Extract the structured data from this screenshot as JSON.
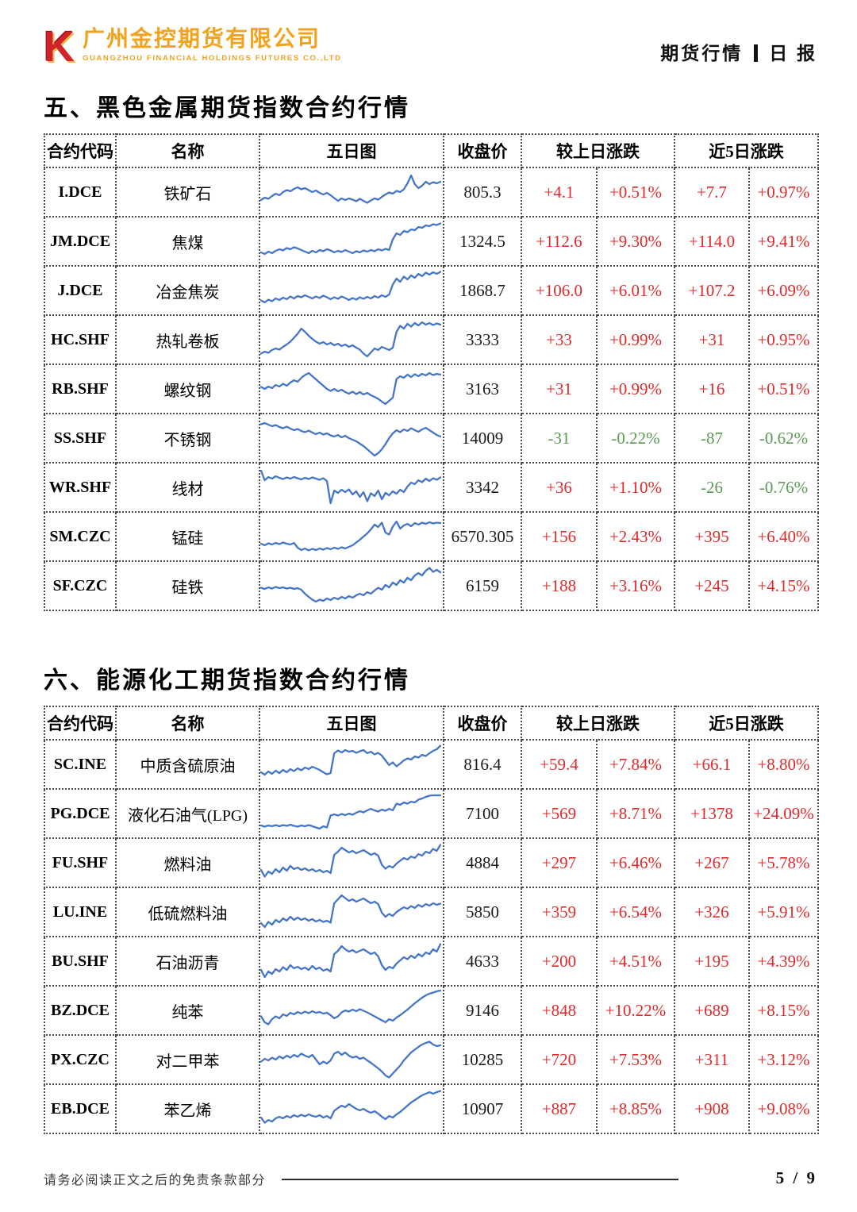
{
  "header": {
    "logo": {
      "mark": "K",
      "company_cn": "广州金控期货有限公司",
      "company_en": "GUANGZHOU FINANCIAL HOLDINGS FUTURES CO.,LTD"
    },
    "report_type": "期货行情",
    "report_period": "日 报"
  },
  "colors": {
    "up": "#e02a2a",
    "down": "#5b9a54",
    "spark": "#4575c8",
    "logo_red": "#d2232b",
    "logo_orange": "#f2a31d"
  },
  "columns": {
    "code": "合约代码",
    "name": "名称",
    "chart": "五日图",
    "close": "收盘价",
    "chg1": "较上日涨跌",
    "chg5": "近5日涨跌"
  },
  "sections": [
    {
      "title": "五、黑色金属期货指数合约行情",
      "rows": [
        {
          "code": "I.DCE",
          "name": "铁矿石",
          "close": "805.3",
          "chg": "+4.1",
          "chg_pct": "+0.51%",
          "chg5": "+7.7",
          "chg5_pct": "+0.97%",
          "spark": [
            30,
            36,
            33,
            40,
            46,
            42,
            50,
            55,
            52,
            58,
            62,
            57,
            60,
            55,
            50,
            54,
            48,
            44,
            48,
            42,
            35,
            28,
            34,
            30,
            34,
            31,
            27,
            33,
            28,
            23,
            29,
            34,
            31,
            38,
            44,
            49,
            46,
            53,
            50,
            57,
            72,
            92,
            70,
            60,
            66,
            76,
            70,
            75,
            72,
            76
          ]
        },
        {
          "code": "JM.DCE",
          "name": "焦煤",
          "close": "1324.5",
          "chg": "+112.6",
          "chg_pct": "+9.30%",
          "chg5": "+114.0",
          "chg5_pct": "+9.41%",
          "spark": [
            22,
            18,
            24,
            20,
            26,
            30,
            27,
            33,
            30,
            35,
            32,
            28,
            24,
            20,
            26,
            22,
            28,
            25,
            30,
            27,
            22,
            26,
            23,
            28,
            24,
            20,
            25,
            22,
            27,
            24,
            28,
            25,
            30,
            27,
            31,
            28,
            55,
            70,
            66,
            76,
            73,
            80,
            78,
            86,
            84,
            90,
            88,
            93,
            91,
            95
          ]
        },
        {
          "code": "J.DCE",
          "name": "冶金焦炭",
          "close": "1868.7",
          "chg": "+106.0",
          "chg_pct": "+6.01%",
          "chg5": "+107.2",
          "chg5_pct": "+6.09%",
          "spark": [
            25,
            20,
            27,
            23,
            30,
            26,
            32,
            28,
            35,
            30,
            36,
            33,
            38,
            34,
            30,
            35,
            31,
            37,
            33,
            28,
            33,
            29,
            35,
            31,
            26,
            31,
            27,
            33,
            29,
            34,
            30,
            36,
            32,
            38,
            34,
            40,
            65,
            80,
            72,
            85,
            78,
            88,
            82,
            92,
            86,
            95,
            90,
            96,
            92,
            97
          ]
        },
        {
          "code": "HC.SHF",
          "name": "热轧卷板",
          "close": "3333",
          "chg": "+33",
          "chg_pct": "+0.99%",
          "chg5": "+31",
          "chg5_pct": "+0.95%",
          "spark": [
            15,
            20,
            17,
            24,
            28,
            25,
            32,
            38,
            45,
            55,
            65,
            78,
            70,
            60,
            52,
            45,
            40,
            44,
            38,
            42,
            36,
            40,
            34,
            38,
            32,
            36,
            30,
            25,
            15,
            8,
            18,
            28,
            24,
            32,
            28,
            24,
            30,
            70,
            85,
            78,
            90,
            83,
            92,
            86,
            94,
            88,
            92,
            87,
            91,
            88
          ]
        },
        {
          "code": "RB.SHF",
          "name": "螺纹钢",
          "close": "3163",
          "chg": "+31",
          "chg_pct": "+0.99%",
          "chg5": "+16",
          "chg5_pct": "+0.51%",
          "spark": [
            55,
            50,
            56,
            52,
            60,
            56,
            63,
            58,
            66,
            72,
            68,
            78,
            85,
            90,
            82,
            74,
            66,
            58,
            50,
            45,
            50,
            44,
            48,
            42,
            38,
            43,
            37,
            42,
            36,
            40,
            34,
            30,
            25,
            18,
            12,
            20,
            28,
            75,
            82,
            78,
            86,
            80,
            87,
            82,
            88,
            84,
            90,
            85,
            88,
            86
          ]
        },
        {
          "code": "SS.SHF",
          "name": "不锈钢",
          "close": "14009",
          "chg": "-31",
          "chg_pct": "-0.22%",
          "chg5": "-87",
          "chg5_pct": "-0.62%",
          "spark": [
            85,
            88,
            84,
            80,
            83,
            78,
            75,
            79,
            74,
            70,
            73,
            68,
            65,
            69,
            64,
            60,
            64,
            59,
            62,
            57,
            54,
            58,
            52,
            56,
            50,
            46,
            42,
            36,
            30,
            22,
            14,
            6,
            12,
            22,
            35,
            50,
            62,
            70,
            65,
            72,
            68,
            75,
            70,
            66,
            72,
            76,
            70,
            64,
            58,
            54
          ]
        },
        {
          "code": "WR.SHF",
          "name": "线材",
          "close": "3342",
          "chg": "+36",
          "chg_pct": "+1.10%",
          "chg5": "-26",
          "chg5_pct": "-0.76%",
          "spark": [
            92,
            68,
            76,
            72,
            78,
            74,
            71,
            75,
            72,
            76,
            73,
            70,
            74,
            71,
            75,
            72,
            69,
            73,
            66,
            10,
            42,
            36,
            44,
            38,
            45,
            32,
            40,
            26,
            38,
            15,
            35,
            28,
            42,
            20,
            36,
            30,
            40,
            34,
            44,
            38,
            52,
            62,
            58,
            68,
            63,
            72,
            66,
            73,
            69,
            75
          ]
        },
        {
          "code": "SM.CZC",
          "name": "锰硅",
          "close": "6570.305",
          "chg": "+156",
          "chg_pct": "+2.43%",
          "chg5": "+395",
          "chg5_pct": "+6.40%",
          "spark": [
            32,
            28,
            33,
            30,
            34,
            31,
            35,
            32,
            30,
            34,
            22,
            16,
            20,
            15,
            19,
            16,
            20,
            17,
            21,
            18,
            22,
            19,
            23,
            20,
            24,
            28,
            35,
            42,
            50,
            58,
            68,
            80,
            74,
            85,
            60,
            55,
            75,
            88,
            70,
            78,
            82,
            76,
            84,
            80,
            85,
            82,
            86,
            83,
            85,
            84
          ]
        },
        {
          "code": "SF.CZC",
          "name": "硅铁",
          "close": "6159",
          "chg": "+188",
          "chg_pct": "+3.16%",
          "chg5": "+245",
          "chg5_pct": "+4.15%",
          "spark": [
            45,
            42,
            46,
            43,
            47,
            44,
            46,
            43,
            45,
            42,
            44,
            40,
            30,
            22,
            15,
            10,
            15,
            12,
            18,
            14,
            20,
            16,
            22,
            18,
            24,
            20,
            26,
            30,
            26,
            34,
            30,
            38,
            45,
            40,
            52,
            46,
            58,
            52,
            64,
            58,
            70,
            64,
            76,
            82,
            76,
            88,
            95,
            85,
            90,
            84
          ]
        }
      ]
    },
    {
      "title": "六、能源化工期货指数合约行情",
      "rows": [
        {
          "code": "SC.INE",
          "name": "中质含硫原油",
          "close": "816.4",
          "chg": "+59.4",
          "chg_pct": "+7.84%",
          "chg5": "+66.1",
          "chg5_pct": "+8.80%",
          "spark": [
            30,
            24,
            32,
            26,
            34,
            28,
            36,
            30,
            38,
            33,
            40,
            35,
            42,
            38,
            44,
            40,
            36,
            30,
            25,
            28,
            78,
            85,
            80,
            86,
            82,
            84,
            79,
            83,
            86,
            78,
            82,
            75,
            79,
            72,
            60,
            48,
            55,
            45,
            52,
            60,
            65,
            62,
            70,
            67,
            74,
            71,
            78,
            84,
            88,
            97
          ]
        },
        {
          "code": "PG.DCE",
          "name": "液化石油气(LPG)",
          "close": "7100",
          "chg": "+569",
          "chg_pct": "+8.71%",
          "chg5": "+1378",
          "chg5_pct": "+24.09%",
          "spark": [
            20,
            17,
            20,
            18,
            21,
            18,
            21,
            19,
            22,
            19,
            17,
            20,
            18,
            21,
            18,
            15,
            12,
            18,
            15,
            45,
            48,
            45,
            49,
            46,
            50,
            47,
            52,
            56,
            53,
            58,
            62,
            58,
            55,
            60,
            57,
            62,
            58,
            75,
            72,
            78,
            75,
            80,
            78,
            85,
            88,
            92,
            95,
            96,
            96,
            96
          ]
        },
        {
          "code": "FU.SHF",
          "name": "燃料油",
          "close": "4884",
          "chg": "+297",
          "chg_pct": "+6.46%",
          "chg5": "+267",
          "chg5_pct": "+5.78%",
          "spark": [
            32,
            15,
            28,
            22,
            34,
            26,
            38,
            30,
            42,
            34,
            38,
            32,
            36,
            30,
            34,
            28,
            32,
            26,
            30,
            24,
            70,
            78,
            88,
            82,
            76,
            80,
            74,
            78,
            82,
            76,
            70,
            74,
            68,
            45,
            35,
            42,
            38,
            48,
            55,
            62,
            58,
            66,
            62,
            72,
            68,
            78,
            74,
            85,
            80,
            95
          ]
        },
        {
          "code": "LU.INE",
          "name": "低硫燃料油",
          "close": "5850",
          "chg": "+359",
          "chg_pct": "+6.54%",
          "chg5": "+326",
          "chg5_pct": "+5.91%",
          "spark": [
            22,
            12,
            25,
            18,
            30,
            24,
            34,
            28,
            38,
            30,
            36,
            30,
            34,
            28,
            32,
            26,
            30,
            25,
            28,
            23,
            72,
            82,
            92,
            85,
            78,
            82,
            76,
            80,
            84,
            78,
            72,
            76,
            70,
            48,
            38,
            45,
            40,
            50,
            56,
            62,
            58,
            65,
            60,
            68,
            63,
            70,
            66,
            72,
            68,
            71
          ]
        },
        {
          "code": "BU.SHF",
          "name": "石油沥青",
          "close": "4633",
          "chg": "+200",
          "chg_pct": "+4.51%",
          "chg5": "+195",
          "chg5_pct": "+4.39%",
          "spark": [
            28,
            10,
            24,
            18,
            30,
            24,
            35,
            28,
            40,
            32,
            36,
            30,
            34,
            28,
            38,
            30,
            34,
            26,
            30,
            24,
            68,
            76,
            88,
            80,
            74,
            78,
            72,
            76,
            80,
            74,
            68,
            72,
            62,
            40,
            28,
            36,
            32,
            44,
            52,
            60,
            55,
            64,
            58,
            68,
            62,
            72,
            68,
            80,
            74,
            93
          ]
        },
        {
          "code": "BZ.DCE",
          "name": "纯苯",
          "close": "9146",
          "chg": "+848",
          "chg_pct": "+10.22%",
          "chg5": "+689",
          "chg5_pct": "+8.15%",
          "spark": [
            35,
            20,
            15,
            28,
            35,
            30,
            40,
            36,
            44,
            40,
            46,
            42,
            47,
            43,
            48,
            44,
            46,
            42,
            44,
            38,
            30,
            35,
            45,
            50,
            47,
            52,
            48,
            53,
            49,
            45,
            40,
            35,
            30,
            25,
            20,
            28,
            24,
            32,
            38,
            45,
            52,
            60,
            68,
            75,
            82,
            88,
            92,
            95,
            98,
            100
          ]
        },
        {
          "code": "PX.CZC",
          "name": "对二甲苯",
          "close": "10285",
          "chg": "+720",
          "chg_pct": "+7.53%",
          "chg5": "+311",
          "chg5_pct": "+3.12%",
          "spark": [
            45,
            52,
            48,
            55,
            50,
            58,
            53,
            60,
            55,
            62,
            57,
            65,
            60,
            56,
            62,
            50,
            38,
            45,
            40,
            48,
            65,
            70,
            62,
            68,
            60,
            55,
            58,
            52,
            55,
            48,
            42,
            35,
            28,
            20,
            10,
            5,
            15,
            25,
            35,
            48,
            58,
            68,
            75,
            82,
            88,
            92,
            95,
            88,
            84,
            86
          ]
        },
        {
          "code": "EB.DCE",
          "name": "苯乙烯",
          "close": "10907",
          "chg": "+887",
          "chg_pct": "+8.85%",
          "chg5": "+908",
          "chg5_pct": "+9.08%",
          "spark": [
            28,
            15,
            22,
            18,
            26,
            30,
            26,
            32,
            28,
            34,
            30,
            35,
            31,
            36,
            32,
            30,
            34,
            28,
            32,
            26,
            45,
            52,
            58,
            54,
            62,
            56,
            50,
            46,
            50,
            44,
            40,
            44,
            38,
            30,
            24,
            32,
            28,
            36,
            42,
            50,
            58,
            66,
            72,
            78,
            84,
            88,
            92,
            88,
            92,
            95
          ]
        }
      ]
    }
  ],
  "footer": {
    "disclaimer": "请务必阅读正文之后的免责条款部分",
    "page": "5 / 9"
  }
}
